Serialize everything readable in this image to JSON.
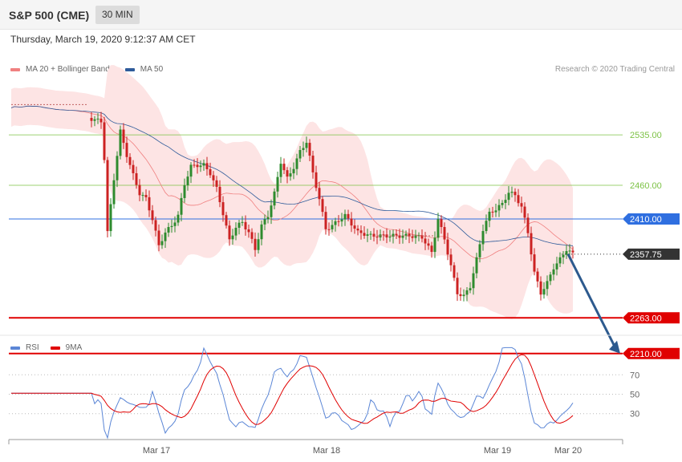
{
  "header": {
    "instrument": "S&P 500 (CME)",
    "timeframe": "30 MIN"
  },
  "timestamp": "Thursday, March 19, 2020 9:12:37 AM CET",
  "legend_main": [
    {
      "label": "MA 20 + Bollinger Bands",
      "color": "#f08080"
    },
    {
      "label": "MA 50",
      "color": "#2e5b9a"
    }
  ],
  "legend_rsi": [
    {
      "label": "RSI",
      "color": "#5b86d6"
    },
    {
      "label": "9MA",
      "color": "#e00000"
    }
  ],
  "credit": "Research © 2020 Trading Central",
  "colors": {
    "resistance": "#7cc245",
    "pivot": "#2f6fe0",
    "support": "#e00000",
    "last": "#333333",
    "bull": "#2e8b2e",
    "bear": "#cc2222",
    "band": "#fde4e4",
    "arrow": "#2d5a8e"
  },
  "chart_data": [
    {
      "type": "candlestick",
      "title": "",
      "y_range": [
        2230,
        2640
      ],
      "x_ticks": [
        "Mar 17",
        "Mar 18",
        "Mar 19",
        "Mar 20"
      ],
      "levels": [
        {
          "value": 2535.0,
          "label": "2535.00",
          "kind": "resistance"
        },
        {
          "value": 2460.0,
          "label": "2460.00",
          "kind": "resistance"
        },
        {
          "value": 2410.0,
          "label": "2410.00",
          "kind": "pivot"
        },
        {
          "value": 2357.75,
          "label": "2357.75",
          "kind": "last"
        },
        {
          "value": 2263.0,
          "label": "2263.00",
          "kind": "support"
        },
        {
          "value": 2210.0,
          "label": "2210.00",
          "kind": "support"
        }
      ],
      "forecast_arrow": {
        "from": 2357.75,
        "to": 2210.0,
        "direction": "down"
      },
      "grid": false,
      "legend_position": "top-left"
    },
    {
      "type": "line",
      "title": "",
      "y_range": [
        0,
        100
      ],
      "y_ticks": [
        "70",
        "50",
        "30"
      ],
      "series": [
        {
          "name": "RSI"
        },
        {
          "name": "9MA"
        }
      ],
      "grid": true,
      "legend_position": "top-left"
    }
  ]
}
